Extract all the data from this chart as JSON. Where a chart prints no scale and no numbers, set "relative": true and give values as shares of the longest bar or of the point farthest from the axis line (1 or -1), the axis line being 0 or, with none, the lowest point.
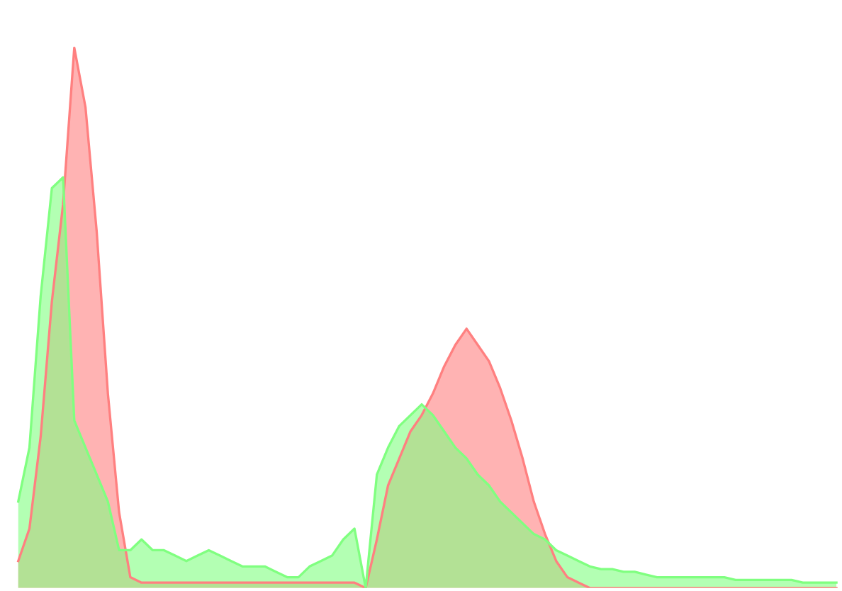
{
  "chart_data": {
    "type": "area",
    "relative": true,
    "categories": [
      null,
      null,
      null,
      null,
      null,
      null,
      null,
      null,
      null,
      null,
      null,
      null,
      null,
      null,
      null,
      null,
      null,
      null,
      null,
      null,
      null,
      null,
      null,
      null,
      null,
      null,
      null,
      null,
      null,
      null,
      null,
      null,
      null,
      null,
      null,
      null,
      null,
      null,
      null,
      null,
      null,
      null,
      null,
      null,
      null,
      null,
      null,
      null,
      null,
      null,
      null,
      null,
      null,
      null,
      null,
      null,
      null,
      null,
      null,
      null,
      null,
      null,
      null,
      null,
      null,
      null,
      null,
      null,
      null,
      null,
      null,
      null,
      null,
      null
    ],
    "series": [
      {
        "color": "#ff8080",
        "values": [
          0.05,
          0.11,
          0.28,
          0.53,
          0.71,
          1,
          0.89,
          0.66,
          0.36,
          0.14,
          0.02,
          0.01,
          0.01,
          0.01,
          0.01,
          0.01,
          0.01,
          0.01,
          0.01,
          0.01,
          0.01,
          0.01,
          0.01,
          0.01,
          0.01,
          0.01,
          0.01,
          0.01,
          0.01,
          0.01,
          0.01,
          0,
          0.09,
          0.19,
          0.24,
          0.29,
          0.32,
          0.36,
          0.41,
          0.45,
          0.48,
          0.45,
          0.42,
          0.37,
          0.31,
          0.24,
          0.16,
          0.1,
          0.05,
          0.02,
          0.01,
          0,
          0,
          0,
          0,
          0,
          0,
          0,
          0,
          0,
          0,
          0,
          0,
          0,
          0,
          0,
          0,
          0,
          0,
          0,
          0,
          0,
          0,
          0
        ]
      },
      {
        "color": "#80ff80",
        "values": [
          0.16,
          0.26,
          0.54,
          0.74,
          0.76,
          0.31,
          0.26,
          0.21,
          0.16,
          0.07,
          0.07,
          0.09,
          0.07,
          0.07,
          0.06,
          0.05,
          0.06,
          0.07,
          0.06,
          0.05,
          0.04,
          0.04,
          0.04,
          0.03,
          0.02,
          0.02,
          0.04,
          0.05,
          0.06,
          0.09,
          0.11,
          0,
          0.21,
          0.26,
          0.3,
          0.32,
          0.34,
          0.32,
          0.29,
          0.26,
          0.24,
          0.21,
          0.19,
          0.16,
          0.14,
          0.12,
          0.1,
          0.09,
          0.07,
          0.06,
          0.05,
          0.04,
          0.035,
          0.035,
          0.03,
          0.03,
          0.025,
          0.02,
          0.02,
          0.02,
          0.02,
          0.02,
          0.02,
          0.02,
          0.015,
          0.015,
          0.015,
          0.015,
          0.015,
          0.015,
          0.01,
          0.01,
          0.01,
          0.01
        ]
      }
    ]
  }
}
